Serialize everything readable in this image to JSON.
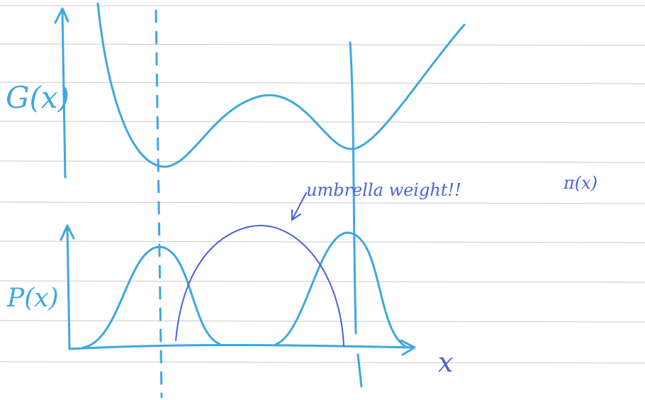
{
  "labels": {
    "free_energy": "G(x)",
    "probability": "P(x)",
    "annotation": "umbrella weight!!",
    "weight_symbol": "π(x)",
    "x_axis": "x"
  }
}
